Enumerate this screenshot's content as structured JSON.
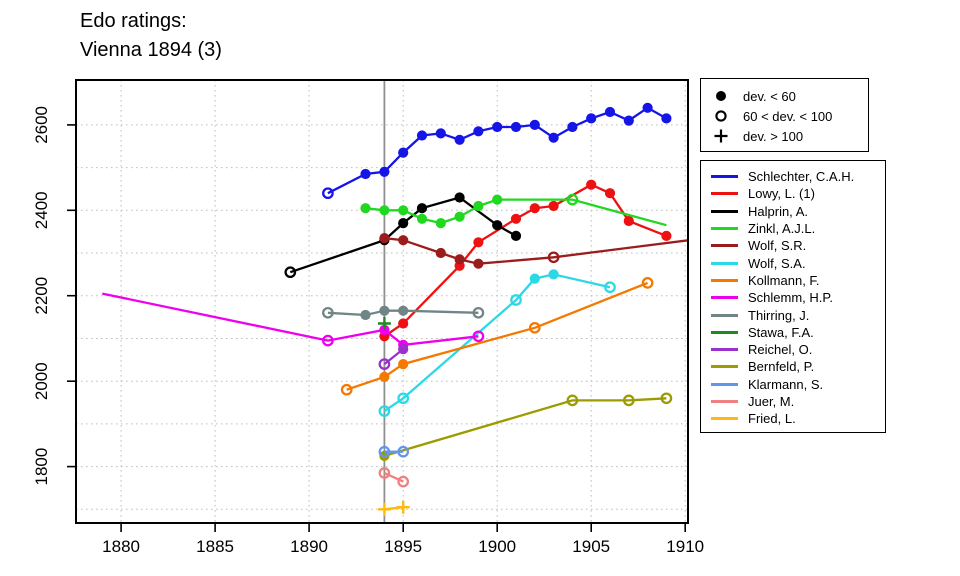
{
  "title": {
    "line1": "Edo ratings:",
    "line2": "Vienna 1894 (3)"
  },
  "symbol_legend": {
    "items": [
      {
        "symbol": "filled-circle",
        "label": "dev. < 60"
      },
      {
        "symbol": "open-circle",
        "label": "60 < dev. < 100"
      },
      {
        "symbol": "plus",
        "label": "dev. > 100"
      }
    ]
  },
  "chart_data": {
    "type": "line",
    "title": "Edo ratings: Vienna 1894 (3)",
    "xlabel": "",
    "ylabel": "",
    "grid": true,
    "legend_position": "right",
    "point_format": "[year, rating, marker] where marker f=filled-circle (dev.<60), o=open-circle (60<dev.<100), +=plus (dev.>100), n=no-marker (line endpoint)",
    "x_axis": {
      "ticks": [
        1880,
        1885,
        1890,
        1895,
        1900,
        1905,
        1910
      ],
      "range": [
        1877.6,
        1910.15
      ]
    },
    "y_axis": {
      "ticks": [
        1800,
        2000,
        2200,
        2400,
        2600
      ],
      "minor_grid_step": 100,
      "range": [
        1668,
        2705
      ]
    },
    "event_line": {
      "year": 1894,
      "color": "#8F8F8F"
    },
    "series": [
      {
        "name": "Schlechter, C.A.H.",
        "color": "#1515E8",
        "points": [
          [
            1891,
            2440,
            "o"
          ],
          [
            1893,
            2485,
            "f"
          ],
          [
            1894,
            2490,
            "f"
          ],
          [
            1895,
            2535,
            "f"
          ],
          [
            1896,
            2575,
            "f"
          ],
          [
            1897,
            2580,
            "f"
          ],
          [
            1898,
            2565,
            "f"
          ],
          [
            1899,
            2585,
            "f"
          ],
          [
            1900,
            2595,
            "f"
          ],
          [
            1901,
            2595,
            "f"
          ],
          [
            1902,
            2600,
            "f"
          ],
          [
            1903,
            2570,
            "f"
          ],
          [
            1904,
            2595,
            "f"
          ],
          [
            1905,
            2615,
            "f"
          ],
          [
            1906,
            2630,
            "f"
          ],
          [
            1907,
            2610,
            "f"
          ],
          [
            1908,
            2640,
            "f"
          ],
          [
            1909,
            2615,
            "f"
          ]
        ]
      },
      {
        "name": "Lowy, L. (1)",
        "color": "#EE1111",
        "points": [
          [
            1894,
            2105,
            "f"
          ],
          [
            1895,
            2135,
            "f"
          ],
          [
            1898,
            2270,
            "f"
          ],
          [
            1899,
            2325,
            "f"
          ],
          [
            1901,
            2380,
            "f"
          ],
          [
            1902,
            2405,
            "f"
          ],
          [
            1903,
            2410,
            "f"
          ],
          [
            1905,
            2460,
            "f"
          ],
          [
            1906,
            2440,
            "f"
          ],
          [
            1907,
            2375,
            "f"
          ],
          [
            1909,
            2340,
            "f"
          ]
        ]
      },
      {
        "name": "Halprin, A.",
        "color": "#000000",
        "points": [
          [
            1889,
            2255,
            "o"
          ],
          [
            1894,
            2330,
            "f"
          ],
          [
            1895,
            2370,
            "f"
          ],
          [
            1896,
            2405,
            "f"
          ],
          [
            1898,
            2430,
            "f"
          ],
          [
            1900,
            2365,
            "f"
          ],
          [
            1901,
            2340,
            "f"
          ]
        ]
      },
      {
        "name": "Zinkl, A.J.L.",
        "color": "#1FD81F",
        "points": [
          [
            1893,
            2405,
            "f"
          ],
          [
            1894,
            2400,
            "f"
          ],
          [
            1895,
            2400,
            "f"
          ],
          [
            1896,
            2380,
            "f"
          ],
          [
            1897,
            2370,
            "f"
          ],
          [
            1898,
            2385,
            "f"
          ],
          [
            1899,
            2410,
            "f"
          ],
          [
            1900,
            2425,
            "f"
          ],
          [
            1904,
            2425,
            "o"
          ],
          [
            1909,
            2365,
            "n"
          ]
        ]
      },
      {
        "name": "Wolf, S.R.",
        "color": "#9B1C1C",
        "points": [
          [
            1894,
            2335,
            "f"
          ],
          [
            1895,
            2330,
            "f"
          ],
          [
            1897,
            2300,
            "f"
          ],
          [
            1898,
            2285,
            "f"
          ],
          [
            1899,
            2275,
            "f"
          ],
          [
            1903,
            2290,
            "o"
          ],
          [
            1910.2,
            2330,
            "n"
          ]
        ]
      },
      {
        "name": "Wolf, S.A.",
        "color": "#2BD9E6",
        "points": [
          [
            1894,
            1930,
            "o"
          ],
          [
            1895,
            1960,
            "o"
          ],
          [
            1901,
            2190,
            "o"
          ],
          [
            1902,
            2240,
            "f"
          ],
          [
            1903,
            2250,
            "f"
          ],
          [
            1906,
            2220,
            "o"
          ]
        ]
      },
      {
        "name": "Kollmann, F.",
        "color": "#F57900",
        "points": [
          [
            1892,
            1980,
            "o"
          ],
          [
            1894,
            2010,
            "f"
          ],
          [
            1895,
            2040,
            "f"
          ],
          [
            1902,
            2125,
            "o"
          ],
          [
            1908,
            2230,
            "o"
          ]
        ]
      },
      {
        "name": "Schlemm, H.P.",
        "color": "#EE00EE",
        "points": [
          [
            1879,
            2205,
            "n"
          ],
          [
            1891,
            2095,
            "o"
          ],
          [
            1894,
            2120,
            "f"
          ],
          [
            1895,
            2085,
            "f"
          ],
          [
            1899,
            2105,
            "o"
          ]
        ]
      },
      {
        "name": "Thirring, J.",
        "color": "#708585",
        "points": [
          [
            1891,
            2160,
            "o"
          ],
          [
            1893,
            2155,
            "f"
          ],
          [
            1894,
            2165,
            "f"
          ],
          [
            1895,
            2165,
            "f"
          ],
          [
            1899,
            2160,
            "o"
          ]
        ]
      },
      {
        "name": "Stawa, F.A.",
        "color": "#1F8B1F",
        "points": [
          [
            1894,
            2135,
            "+"
          ]
        ]
      },
      {
        "name": "Reichel, O.",
        "color": "#9932CC",
        "points": [
          [
            1894,
            2040,
            "o"
          ],
          [
            1895,
            2075,
            "f"
          ]
        ]
      },
      {
        "name": "Bernfeld, P.",
        "color": "#9C9C00",
        "points": [
          [
            1894,
            1825,
            "f"
          ],
          [
            1904,
            1955,
            "o"
          ],
          [
            1907,
            1955,
            "o"
          ],
          [
            1909,
            1960,
            "o"
          ]
        ]
      },
      {
        "name": "Klarmann, S.",
        "color": "#6495ED",
        "points": [
          [
            1894,
            1835,
            "o"
          ],
          [
            1895,
            1835,
            "o"
          ]
        ]
      },
      {
        "name": "Juer, M.",
        "color": "#F08080",
        "points": [
          [
            1894,
            1785,
            "o"
          ],
          [
            1895,
            1765,
            "o"
          ]
        ]
      },
      {
        "name": "Fried, L.",
        "color": "#FFB90F",
        "points": [
          [
            1894,
            1700,
            "+"
          ],
          [
            1895,
            1705,
            "+"
          ]
        ]
      }
    ]
  }
}
